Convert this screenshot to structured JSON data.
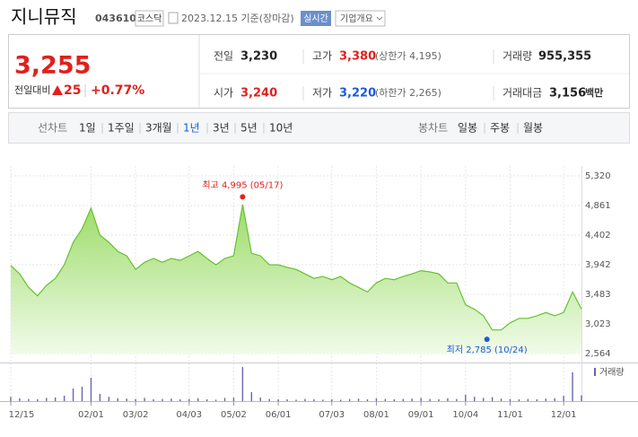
{
  "header": {
    "name": "지니뮤직",
    "code": "043610",
    "market": "코스닥",
    "date": "2023.12.15 기준(장마감)",
    "realtime": "실시간",
    "overview": "기업개요"
  },
  "quote": {
    "price": "3,255",
    "change_label": "전일대비",
    "change": "25",
    "change_pct": "+0.77%"
  },
  "stats": [
    [
      {
        "label": "전일",
        "value": "3,230",
        "color": "#222222"
      },
      {
        "label": "고가",
        "value": "3,380",
        "color": "#e0201c",
        "extra": "(상한가 4,195)"
      },
      {
        "label": "거래량",
        "value": "955,355",
        "color": "#222222"
      }
    ],
    [
      {
        "label": "시가",
        "value": "3,240",
        "color": "#e0201c"
      },
      {
        "label": "저가",
        "value": "3,220",
        "color": "#1a5bd8",
        "extra": "(하한가 2,265)"
      },
      {
        "label": "거래대금",
        "value": "3,156",
        "color": "#222222",
        "unit": "백만"
      }
    ]
  ],
  "tabs": {
    "line_label": "선차트",
    "line_periods": [
      "1일",
      "1주일",
      "3개월",
      "1년",
      "3년",
      "5년",
      "10년"
    ],
    "selected": 3,
    "candle_label": "봉차트",
    "candle_periods": [
      "일봉",
      "주봉",
      "월봉"
    ]
  },
  "chart_data": {
    "type": "line",
    "color": "#66c22e",
    "values": [
      3930,
      3800,
      3590,
      3460,
      3620,
      3730,
      3940,
      4290,
      4500,
      4820,
      4400,
      4290,
      4150,
      4080,
      3870,
      3980,
      4040,
      3980,
      4040,
      4010,
      4080,
      4150,
      4040,
      3940,
      4040,
      4080,
      4875,
      4120,
      4080,
      3940,
      3940,
      3900,
      3870,
      3800,
      3730,
      3760,
      3710,
      3760,
      3660,
      3590,
      3520,
      3660,
      3730,
      3710,
      3760,
      3800,
      3850,
      3830,
      3800,
      3660,
      3660,
      3320,
      3250,
      3150,
      2930,
      2930,
      3040,
      3110,
      3110,
      3150,
      3200,
      3150,
      3200,
      3520,
      3255
    ],
    "volume": [
      1.2,
      0.8,
      0.6,
      0.5,
      0.9,
      1.0,
      1.5,
      3.5,
      4.0,
      6.5,
      2.0,
      1.2,
      0.8,
      0.7,
      0.6,
      0.9,
      0.5,
      0.6,
      0.7,
      0.5,
      0.6,
      0.8,
      0.5,
      0.4,
      0.9,
      1.0,
      9.5,
      2.5,
      1.0,
      0.6,
      0.5,
      0.5,
      0.4,
      0.6,
      0.5,
      0.4,
      0.5,
      0.4,
      0.6,
      0.7,
      0.5,
      0.8,
      0.6,
      0.5,
      0.6,
      0.7,
      0.9,
      0.6,
      0.5,
      0.8,
      0.6,
      1.8,
      1.2,
      0.9,
      1.1,
      0.7,
      0.6,
      0.5,
      0.6,
      0.5,
      0.7,
      0.8,
      1.5,
      8.0,
      1.6
    ],
    "volume_label": "거래량",
    "ylim": [
      2564,
      5320
    ],
    "yticks": [
      {
        "value": 5320,
        "label": "5,320"
      },
      {
        "value": 4861,
        "label": "4,861"
      },
      {
        "value": 4402,
        "label": "4,402"
      },
      {
        "value": 3942,
        "label": "3,942"
      },
      {
        "value": 3483,
        "label": "3,483"
      },
      {
        "value": 3023,
        "label": "3,023"
      },
      {
        "value": 2564,
        "label": "2,564"
      }
    ],
    "xlim": [
      0,
      64
    ],
    "xticks": [
      {
        "value": 0,
        "label": "12/15"
      },
      {
        "value": 9,
        "label": "02/01"
      },
      {
        "value": 14,
        "label": "03/02"
      },
      {
        "value": 20,
        "label": "04/03"
      },
      {
        "value": 25,
        "label": "05/02"
      },
      {
        "value": 30,
        "label": "06/01"
      },
      {
        "value": 36,
        "label": "07/03"
      },
      {
        "value": 41,
        "label": "08/01"
      },
      {
        "value": 46,
        "label": "09/01"
      },
      {
        "value": 51,
        "label": "10/04"
      },
      {
        "value": 56,
        "label": "11/01"
      },
      {
        "value": 62,
        "label": "12/01"
      }
    ],
    "annotations": [
      {
        "label": "최고 4,995 (05/17)",
        "value": 4995,
        "x": 26,
        "color": "#e0201c"
      },
      {
        "label": "최저 2,785 (10/24)",
        "value": 2785,
        "x": 53.4,
        "color": "#1a5bd8"
      }
    ],
    "grid": true
  }
}
